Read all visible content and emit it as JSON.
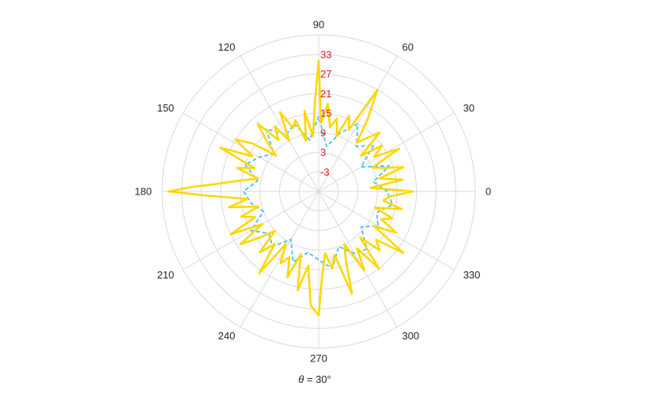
{
  "chart_data": {
    "type": "line",
    "subtype": "polar",
    "xlabel": "θ = 30°",
    "xlabel_parts": {
      "symbol": "θ",
      "rest": " = 30°"
    },
    "angle_ticks_deg": [
      0,
      30,
      60,
      90,
      120,
      150,
      180,
      210,
      240,
      270,
      300,
      330
    ],
    "angle_tick_labels": [
      "0",
      "30",
      "60",
      "90",
      "120",
      "150",
      "180",
      "210",
      "240",
      "270",
      "300",
      "330"
    ],
    "rlim": [
      -9,
      39
    ],
    "radial_ticks": [
      -3,
      3,
      9,
      15,
      21,
      27,
      33
    ],
    "radial_tick_labels": [
      "-3",
      "3",
      "9",
      "15",
      "21",
      "27",
      "33"
    ],
    "radial_label_angle_deg": 90,
    "radial_label_color": "#e31a1c",
    "grid": true,
    "grid_color": "#d9d9d9",
    "series": [
      {
        "style": "dashed",
        "color": "#4dbeee",
        "theta_deg": [
          0,
          10,
          20,
          30,
          40,
          50,
          60,
          70,
          80,
          90,
          100,
          110,
          120,
          130,
          140,
          150,
          160,
          170,
          180,
          190,
          200,
          210,
          220,
          230,
          240,
          250,
          260,
          270,
          280,
          290,
          300,
          310,
          320,
          330,
          340,
          350,
          360
        ],
        "r": [
          12,
          8,
          14,
          6,
          13,
          9,
          15,
          10,
          5,
          14,
          7,
          13,
          11,
          16,
          9,
          12,
          15,
          10,
          14,
          12,
          9,
          15,
          11,
          13,
          8,
          14,
          10,
          12,
          15,
          9,
          13,
          14,
          8,
          12,
          10,
          14,
          12
        ]
      },
      {
        "style": "solid",
        "color": "#ffd700",
        "theta_deg": [
          0,
          4,
          8,
          12,
          16,
          20,
          24,
          28,
          32,
          36,
          40,
          44,
          48,
          52,
          56,
          60,
          64,
          68,
          72,
          76,
          80,
          84,
          88,
          90,
          92,
          96,
          100,
          104,
          108,
          112,
          116,
          120,
          124,
          128,
          132,
          136,
          140,
          144,
          148,
          152,
          156,
          160,
          164,
          168,
          172,
          176,
          178,
          180,
          182,
          186,
          190,
          194,
          198,
          202,
          206,
          210,
          214,
          218,
          222,
          226,
          230,
          234,
          238,
          242,
          246,
          250,
          254,
          258,
          262,
          266,
          270,
          272,
          276,
          280,
          284,
          288,
          292,
          296,
          300,
          304,
          308,
          312,
          316,
          320,
          324,
          328,
          332,
          336,
          340,
          344,
          348,
          352,
          356,
          360
        ],
        "r": [
          20,
          7,
          17,
          10,
          18,
          12,
          9,
          19,
          11,
          15,
          8,
          17,
          13,
          10,
          18,
          27,
          12,
          16,
          9,
          14,
          11,
          18,
          12,
          31,
          20,
          8,
          16,
          7,
          14,
          12,
          18,
          9,
          15,
          11,
          19,
          13,
          8,
          16,
          21,
          14,
          24,
          12,
          17,
          10,
          15,
          23,
          30,
          37,
          26,
          13,
          19,
          10,
          16,
          12,
          21,
          11,
          20,
          14,
          9,
          17,
          12,
          22,
          10,
          16,
          13,
          19,
          11,
          22,
          14,
          26,
          29,
          18,
          10,
          15,
          11,
          24,
          13,
          9,
          19,
          12,
          21,
          10,
          17,
          14,
          23,
          11,
          18,
          12,
          15,
          9,
          17,
          11,
          13,
          20
        ]
      }
    ]
  }
}
